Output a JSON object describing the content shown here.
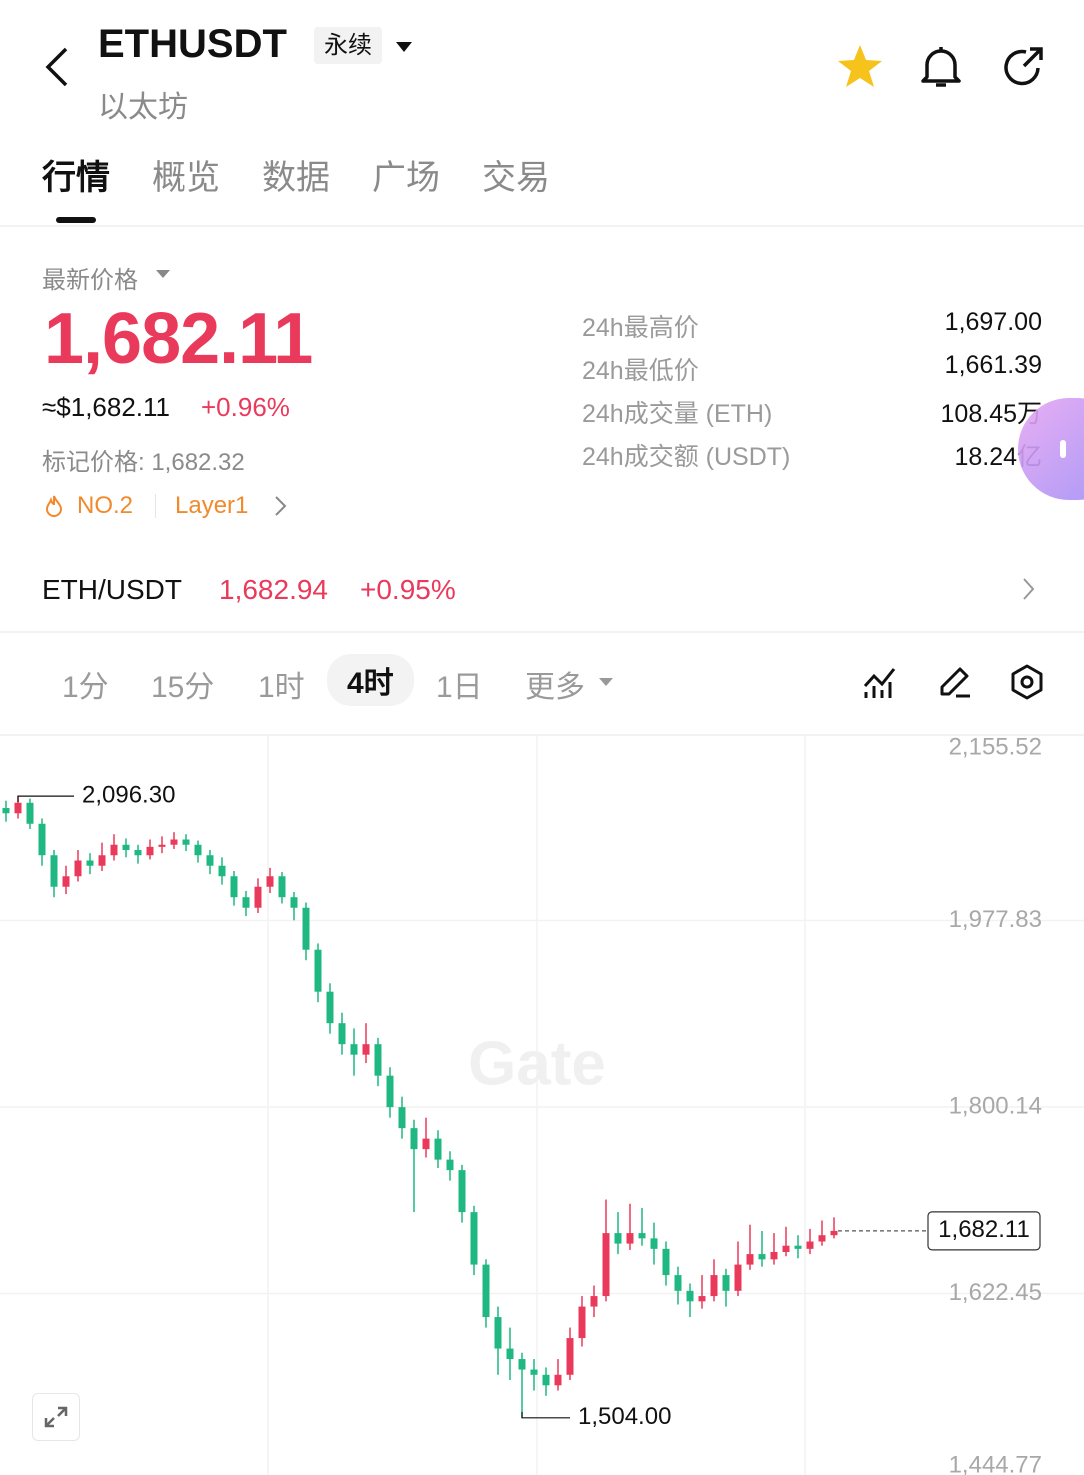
{
  "header": {
    "symbol": "ETHUSDT",
    "contract_type": "永续",
    "name": "以太坊"
  },
  "tabs": [
    "行情",
    "概览",
    "数据",
    "广场",
    "交易"
  ],
  "price": {
    "label": "最新价格",
    "last": "1,682.11",
    "usd": "≈$1,682.11",
    "change": "+0.96%",
    "mark_price": "标记价格: 1,682.32",
    "tags": [
      "NO.2",
      "Layer1"
    ]
  },
  "stats": [
    {
      "label": "24h最高价",
      "value": "1,697.00"
    },
    {
      "label": "24h最低价",
      "value": "1,661.39"
    },
    {
      "label": "24h成交量 (ETH)",
      "value": "108.45万"
    },
    {
      "label": "24h成交额 (USDT)",
      "value": "18.24亿"
    }
  ],
  "spot": {
    "pair": "ETH/USDT",
    "price": "1,682.94",
    "change": "+0.95%"
  },
  "intervals": [
    "1分",
    "15分",
    "1时",
    "4时",
    "1日",
    "更多"
  ],
  "chart_data": {
    "type": "candlestick",
    "up_color": "#ea3a5c",
    "down_color": "#1fb883",
    "watermark": "Gate",
    "ylim": [
      1444.77,
      2155.52
    ],
    "yticks": [
      {
        "value": 2155.52,
        "label": "2,155.52"
      },
      {
        "value": 1977.83,
        "label": "1,977.83"
      },
      {
        "value": 1800.14,
        "label": "1,800.14"
      },
      {
        "value": 1622.45,
        "label": "1,622.45"
      },
      {
        "value": 1444.77,
        "label": "1,444.77"
      }
    ],
    "high_label": {
      "value": 2096.3,
      "label": "2,096.30"
    },
    "low_label": {
      "value": 1504,
      "label": "1,504.00"
    },
    "last_price": {
      "value": 1682.11,
      "label": "1,682.11"
    },
    "candles": [
      [
        2085,
        2092,
        2072,
        2080
      ],
      [
        2080,
        2096.3,
        2075,
        2090
      ],
      [
        2090,
        2094,
        2065,
        2070
      ],
      [
        2070,
        2075,
        2030,
        2040
      ],
      [
        2040,
        2045,
        2000,
        2010
      ],
      [
        2010,
        2030,
        2003,
        2020
      ],
      [
        2020,
        2045,
        2015,
        2035
      ],
      [
        2035,
        2042,
        2022,
        2030
      ],
      [
        2030,
        2052,
        2025,
        2040
      ],
      [
        2040,
        2060,
        2035,
        2050
      ],
      [
        2050,
        2056,
        2038,
        2045
      ],
      [
        2045,
        2050,
        2032,
        2040
      ],
      [
        2040,
        2055,
        2036,
        2048
      ],
      [
        2048,
        2058,
        2042,
        2050
      ],
      [
        2050,
        2062,
        2046,
        2055
      ],
      [
        2055,
        2060,
        2044,
        2050
      ],
      [
        2050,
        2054,
        2033,
        2040
      ],
      [
        2040,
        2045,
        2022,
        2030
      ],
      [
        2030,
        2038,
        2012,
        2020
      ],
      [
        2020,
        2025,
        1992,
        2000
      ],
      [
        2000,
        2006,
        1982,
        1990
      ],
      [
        1990,
        2018,
        1985,
        2010
      ],
      [
        2010,
        2028,
        2004,
        2020
      ],
      [
        2020,
        2024,
        1994,
        2000
      ],
      [
        2000,
        2005,
        1978,
        1990
      ],
      [
        1990,
        1995,
        1940,
        1950
      ],
      [
        1950,
        1956,
        1900,
        1910
      ],
      [
        1910,
        1918,
        1870,
        1880
      ],
      [
        1880,
        1890,
        1850,
        1860
      ],
      [
        1860,
        1875,
        1830,
        1850
      ],
      [
        1850,
        1880,
        1842,
        1860
      ],
      [
        1860,
        1866,
        1820,
        1830
      ],
      [
        1830,
        1838,
        1790,
        1800
      ],
      [
        1800,
        1810,
        1770,
        1780
      ],
      [
        1780,
        1788,
        1700,
        1760
      ],
      [
        1760,
        1790,
        1752,
        1770
      ],
      [
        1770,
        1778,
        1742,
        1750
      ],
      [
        1750,
        1758,
        1730,
        1740
      ],
      [
        1740,
        1745,
        1690,
        1700
      ],
      [
        1700,
        1706,
        1640,
        1650
      ],
      [
        1650,
        1655,
        1590,
        1600
      ],
      [
        1600,
        1610,
        1545,
        1570
      ],
      [
        1570,
        1590,
        1540,
        1560
      ],
      [
        1560,
        1566,
        1504,
        1550
      ],
      [
        1550,
        1560,
        1530,
        1545
      ],
      [
        1545,
        1552,
        1525,
        1535
      ],
      [
        1535,
        1560,
        1530,
        1545
      ],
      [
        1545,
        1590,
        1540,
        1580
      ],
      [
        1580,
        1620,
        1572,
        1610
      ],
      [
        1610,
        1630,
        1600,
        1620
      ],
      [
        1620,
        1712,
        1615,
        1680
      ],
      [
        1680,
        1700,
        1660,
        1670
      ],
      [
        1670,
        1708,
        1664,
        1680
      ],
      [
        1680,
        1704,
        1668,
        1675
      ],
      [
        1675,
        1690,
        1650,
        1665
      ],
      [
        1665,
        1672,
        1630,
        1640
      ],
      [
        1640,
        1648,
        1612,
        1625
      ],
      [
        1625,
        1632,
        1600,
        1615
      ],
      [
        1615,
        1640,
        1608,
        1620
      ],
      [
        1620,
        1655,
        1615,
        1640
      ],
      [
        1640,
        1646,
        1610,
        1625
      ],
      [
        1625,
        1672,
        1620,
        1650
      ],
      [
        1650,
        1688,
        1645,
        1660
      ],
      [
        1660,
        1682,
        1648,
        1655
      ],
      [
        1655,
        1680,
        1650,
        1662
      ],
      [
        1662,
        1686,
        1658,
        1668
      ],
      [
        1668,
        1678,
        1656,
        1665
      ],
      [
        1665,
        1684,
        1660,
        1672
      ],
      [
        1672,
        1692,
        1668,
        1678
      ],
      [
        1678,
        1695,
        1675,
        1682.11
      ]
    ]
  }
}
